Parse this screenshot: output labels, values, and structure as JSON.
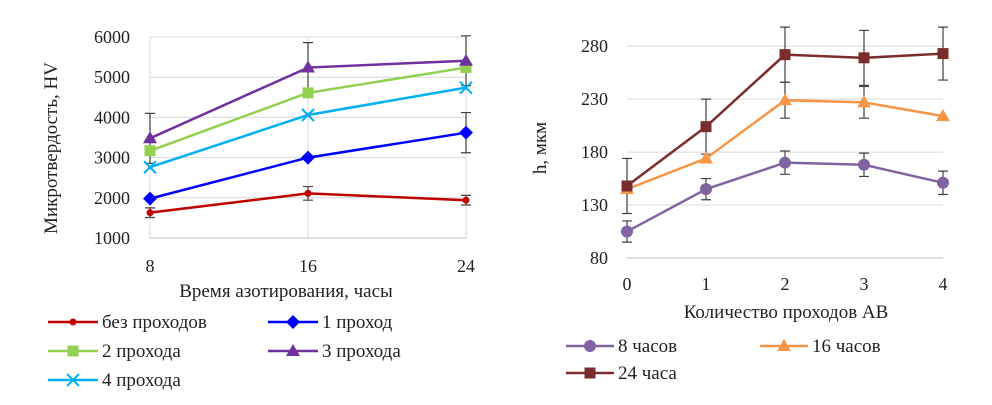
{
  "chart_data": [
    {
      "type": "line",
      "title": "",
      "xlabel": "Время азотирования, часы",
      "ylabel": "Микротвердость, HV",
      "x": [
        8,
        16,
        24
      ],
      "x_ticks": [
        "8",
        "16",
        "24"
      ],
      "xlim": [
        8,
        24
      ],
      "ylim": [
        1000,
        6000
      ],
      "y_ticks": [
        "1000",
        "2000",
        "3000",
        "4000",
        "5000",
        "6000"
      ],
      "grid": true,
      "legend_position": "bottom",
      "series": [
        {
          "name": "без проходов",
          "values": [
            1630,
            2110,
            1940
          ],
          "errors": [
            120,
            170,
            120
          ],
          "color": "#c00000",
          "marker": "circle-small"
        },
        {
          "name": "1 проход",
          "values": [
            1980,
            3000,
            3620
          ],
          "errors": [
            0,
            0,
            500
          ],
          "color": "#0000ff",
          "marker": "diamond"
        },
        {
          "name": "2 прохода",
          "values": [
            3170,
            4610,
            5240
          ],
          "errors": [
            0,
            0,
            0
          ],
          "color": "#92d050",
          "marker": "square"
        },
        {
          "name": "3 прохода",
          "values": [
            3480,
            5240,
            5410
          ],
          "errors": [
            620,
            620,
            620
          ],
          "color": "#7030a0",
          "marker": "triangle"
        },
        {
          "name": "4 прохода",
          "values": [
            2760,
            4060,
            4740
          ],
          "errors": [
            0,
            0,
            0
          ],
          "color": "#00b0f0",
          "marker": "x"
        }
      ]
    },
    {
      "type": "line",
      "title": "",
      "xlabel": "Количество проходов АВ",
      "ylabel": "h, мкм",
      "x": [
        0,
        1,
        2,
        3,
        4
      ],
      "x_ticks": [
        "0",
        "1",
        "2",
        "3",
        "4"
      ],
      "xlim": [
        0,
        4
      ],
      "ylim": [
        80,
        300
      ],
      "y_ticks": [
        "80",
        "130",
        "180",
        "230",
        "280"
      ],
      "grid": true,
      "legend_position": "bottom",
      "series": [
        {
          "name": "8 часов",
          "values": [
            105,
            145,
            170,
            168,
            151
          ],
          "errors": [
            10,
            10,
            11,
            11,
            11
          ],
          "color": "#8064a2",
          "marker": "circle"
        },
        {
          "name": "16 часов",
          "values": [
            145,
            174,
            229,
            227,
            214
          ],
          "errors": [
            0,
            0,
            17,
            15,
            0
          ],
          "color": "#f79646",
          "marker": "triangle"
        },
        {
          "name": "24 часа",
          "values": [
            148,
            204,
            272,
            269,
            273
          ],
          "errors": [
            26,
            26,
            26,
            26,
            25
          ],
          "color": "#7b2c2c",
          "marker": "square"
        }
      ]
    }
  ]
}
